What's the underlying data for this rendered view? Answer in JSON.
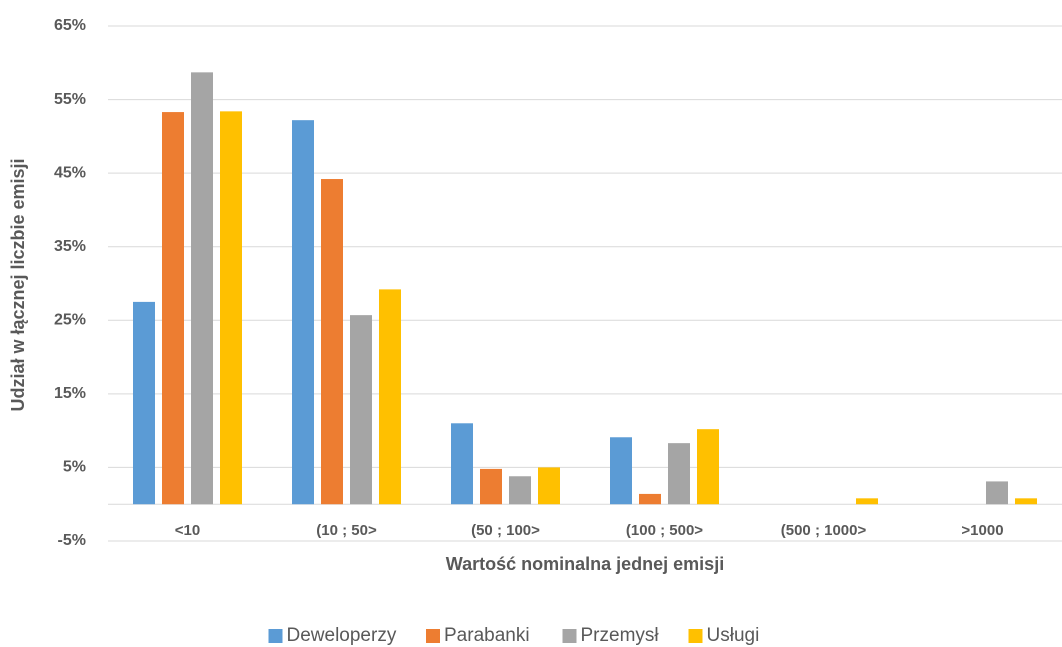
{
  "chart_data": {
    "type": "bar",
    "x_label": "Wartość nominalna jednej emisji",
    "y_label": "Udział w łącznej liczbie emisji",
    "categories": [
      "<10",
      "(10 ; 50>",
      "(50 ; 100>",
      "(100 ; 500>",
      "(500 ; 1000>",
      ">1000"
    ],
    "series": [
      {
        "name": "Deweloperzy",
        "color": "#5b9bd5",
        "values": [
          27.5,
          52.2,
          11.0,
          9.1,
          0,
          0
        ]
      },
      {
        "name": "Parabanki",
        "color": "#ed7d31",
        "values": [
          53.3,
          44.2,
          4.8,
          1.4,
          0,
          0
        ]
      },
      {
        "name": "Przemysł",
        "color": "#a5a5a5",
        "values": [
          58.7,
          25.7,
          3.8,
          8.3,
          0,
          3.1
        ]
      },
      {
        "name": "Usługi",
        "color": "#ffc000",
        "values": [
          53.4,
          29.2,
          5.0,
          10.2,
          0.8,
          0.8
        ]
      }
    ],
    "ylim": [
      -5,
      65
    ],
    "yticks": [
      {
        "value": -5,
        "label": "-5%"
      },
      {
        "value": 5,
        "label": "5%"
      },
      {
        "value": 15,
        "label": "15%"
      },
      {
        "value": 25,
        "label": "25%"
      },
      {
        "value": 35,
        "label": "35%"
      },
      {
        "value": 45,
        "label": "45%"
      },
      {
        "value": 55,
        "label": "55%"
      },
      {
        "value": 65,
        "label": "65%"
      }
    ],
    "grid": true,
    "legend": "bottom"
  }
}
